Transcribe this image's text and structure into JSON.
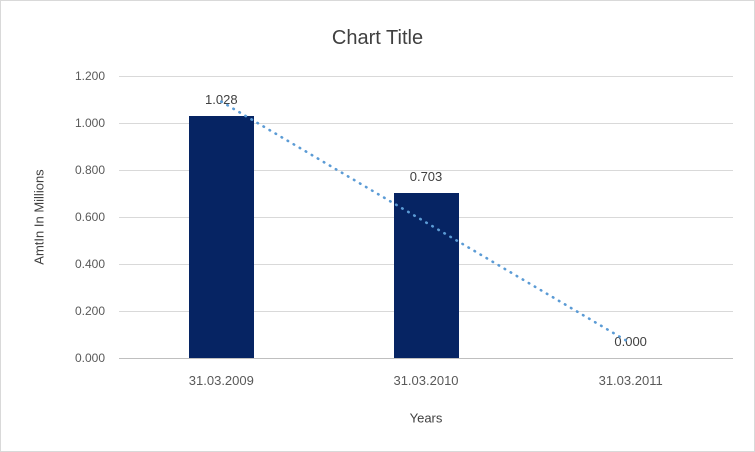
{
  "chart_data": {
    "type": "bar",
    "title": "Chart Title",
    "categories": [
      "31.03.2009",
      "31.03.2010",
      "31.03.2011"
    ],
    "values": [
      1.028,
      0.703,
      0.0
    ],
    "data_labels": [
      "1.028",
      "0.703",
      "0.000"
    ],
    "xlabel": "Years",
    "ylabel": "AmtIn In Millions",
    "ylim": [
      0,
      1.2
    ],
    "y_ticks": [
      "0.000",
      "0.200",
      "0.400",
      "0.600",
      "0.800",
      "1.000",
      "1.200"
    ],
    "grid": true,
    "legend": "none",
    "bar_color": "#062463",
    "trendline": {
      "type": "linear",
      "style": "dotted",
      "color": "#5B9BD5",
      "start_value": 1.091,
      "end_value": 0.063
    },
    "colors": {
      "gridline": "#d9d9d9",
      "axis_line": "#bfbfbf",
      "title_text": "#404040",
      "tick_text": "#595959",
      "border": "#d9d9d9",
      "background": "#ffffff"
    }
  }
}
